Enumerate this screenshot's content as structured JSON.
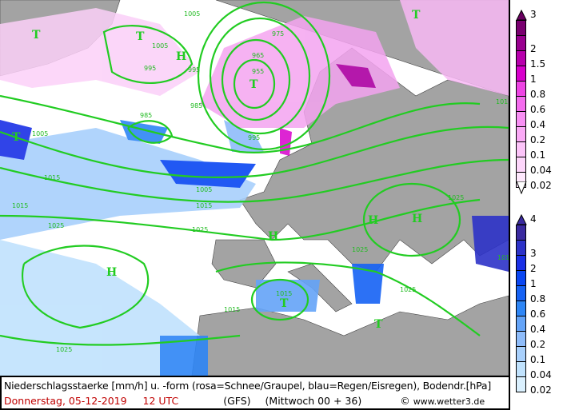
{
  "caption": {
    "line1": "Niederschlagsstaerke [mm/h] u. -form (rosa=Schnee/Graupel, blau=Regen/Eisregen), Bodendr.[hPa]",
    "date": "Donnerstag, 05-12-2019",
    "time": "12 UTC",
    "model": "(GFS)",
    "run": "(Mittwoch 00 + 36)",
    "copyright": "©",
    "site": "www.wetter3.de"
  },
  "legend_snow": {
    "labels": [
      "3",
      "2",
      "1.5",
      "1",
      "0.8",
      "0.6",
      "0.4",
      "0.2",
      "0.1",
      "0.04",
      "0.02"
    ],
    "colors": [
      "#7a0070",
      "#99008f",
      "#b800ad",
      "#d800cc",
      "#ee44e4",
      "#f46cee",
      "#f890f4",
      "#faaaf6",
      "#fcc4f9",
      "#fdd6fb",
      "#fee8fd"
    ]
  },
  "legend_rain": {
    "labels": [
      "4",
      "3",
      "2",
      "1",
      "0.8",
      "0.6",
      "0.4",
      "0.2",
      "0.1",
      "0.04",
      "0.02"
    ],
    "colors": [
      "#3a2aa0",
      "#2c32c8",
      "#1a30e6",
      "#0a46f2",
      "#1662f4",
      "#2e86f6",
      "#64a4f8",
      "#8ebcfa",
      "#a8d0fc",
      "#c0e2fd",
      "#daf0fe"
    ]
  },
  "map": {
    "isobar_color": "#22cc22",
    "pressure_labels": [
      "1005",
      "995",
      "1005",
      "975",
      "965",
      "955",
      "985",
      "995",
      "985",
      "1005",
      "1015",
      "1005",
      "995",
      "1015",
      "1025",
      "1025",
      "1015",
      "1025",
      "1015",
      "1025",
      "1025",
      "1015",
      "1015",
      "1025",
      "1015"
    ],
    "centers": [
      {
        "type": "T"
      },
      {
        "type": "T"
      },
      {
        "type": "T"
      },
      {
        "type": "H"
      },
      {
        "type": "H"
      },
      {
        "type": "H"
      },
      {
        "type": "H"
      },
      {
        "type": "T"
      },
      {
        "type": "T"
      },
      {
        "type": "T"
      },
      {
        "type": "T"
      },
      {
        "type": "H"
      }
    ]
  }
}
